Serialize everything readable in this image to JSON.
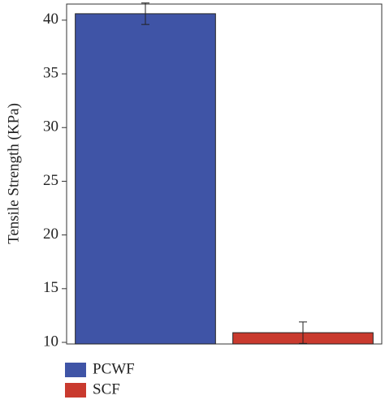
{
  "chart_data": {
    "type": "bar",
    "ylabel": "Tensile Strength (KPa)",
    "categories": [
      "PCWF",
      "SCF"
    ],
    "values": [
      40.6,
      10.9
    ],
    "errors": [
      1.0,
      1.0
    ],
    "colors": [
      "#3f54a6",
      "#c93a2e"
    ],
    "ylim": [
      9.85,
      41.5
    ],
    "yticks": [
      10,
      15,
      20,
      25,
      30,
      35,
      40
    ],
    "grid": false,
    "legend": "bottom-left"
  }
}
